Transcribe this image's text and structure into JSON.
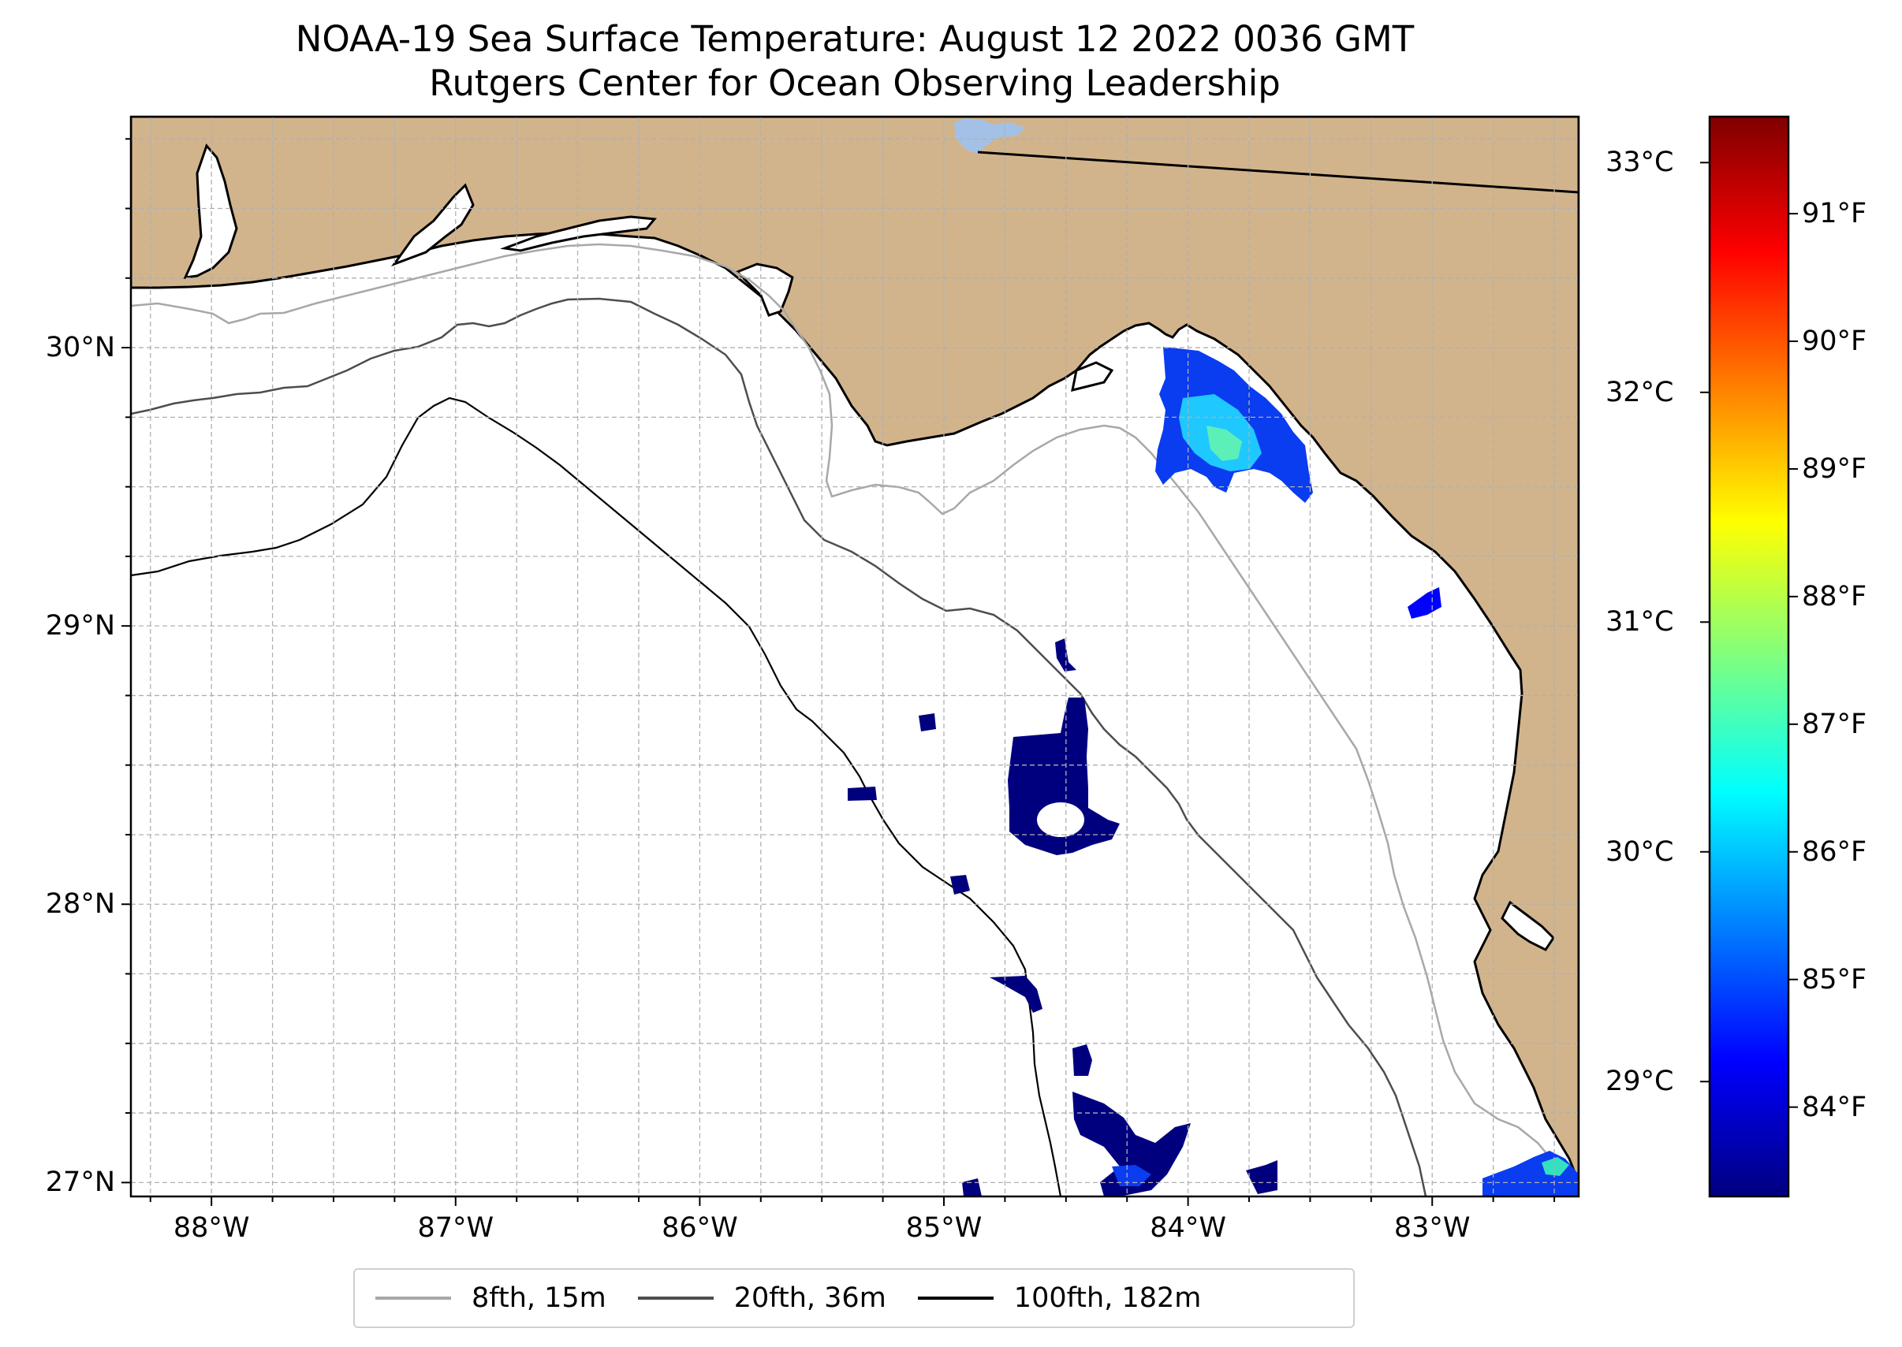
{
  "title": {
    "line1": "NOAA-19 Sea Surface Temperature: August 12 2022 0036 GMT",
    "line2": "Rutgers Center for Ocean Observing Leadership"
  },
  "map": {
    "lon_range": [
      -88.33,
      -82.4
    ],
    "lat_range": [
      26.95,
      30.83
    ],
    "land_color": "#d2b48c",
    "ocean_color": "#ffffff",
    "grid_color": "#b0b0b0",
    "lat_ticks": [
      {
        "value": 30,
        "label": "30°N"
      },
      {
        "value": 29,
        "label": "29°N"
      },
      {
        "value": 28,
        "label": "28°N"
      },
      {
        "value": 27,
        "label": "27°N"
      }
    ],
    "lon_ticks": [
      {
        "value": -88,
        "label": "88°W"
      },
      {
        "value": -87,
        "label": "87°W"
      },
      {
        "value": -86,
        "label": "86°W"
      },
      {
        "value": -85,
        "label": "85°W"
      },
      {
        "value": -84,
        "label": "84°W"
      },
      {
        "value": -83,
        "label": "83°W"
      }
    ]
  },
  "colorbar": {
    "range_c": [
      28.5,
      33.2
    ],
    "celsius_ticks": [
      {
        "value": 33,
        "label": "33°C"
      },
      {
        "value": 32,
        "label": "32°C"
      },
      {
        "value": 31,
        "label": "31°C"
      },
      {
        "value": 30,
        "label": "30°C"
      },
      {
        "value": 29,
        "label": "29°C"
      }
    ],
    "fahrenheit_ticks": [
      {
        "value": 91,
        "label": "91°F"
      },
      {
        "value": 90,
        "label": "90°F"
      },
      {
        "value": 89,
        "label": "89°F"
      },
      {
        "value": 88,
        "label": "88°F"
      },
      {
        "value": 87,
        "label": "87°F"
      },
      {
        "value": 86,
        "label": "86°F"
      },
      {
        "value": 85,
        "label": "85°F"
      },
      {
        "value": 84,
        "label": "84°F"
      }
    ],
    "colors": [
      "#00007f",
      "#0000ff",
      "#007fff",
      "#00ffff",
      "#7fff7f",
      "#ffff00",
      "#ff7f00",
      "#ff0000",
      "#7f0000"
    ]
  },
  "legend": {
    "items": [
      {
        "label": "8fth, 15m",
        "color": "#a8a8a8"
      },
      {
        "label": "20fth, 36m",
        "color": "#4d4d4d"
      },
      {
        "label": "100fth, 182m",
        "color": "#000000"
      }
    ]
  }
}
